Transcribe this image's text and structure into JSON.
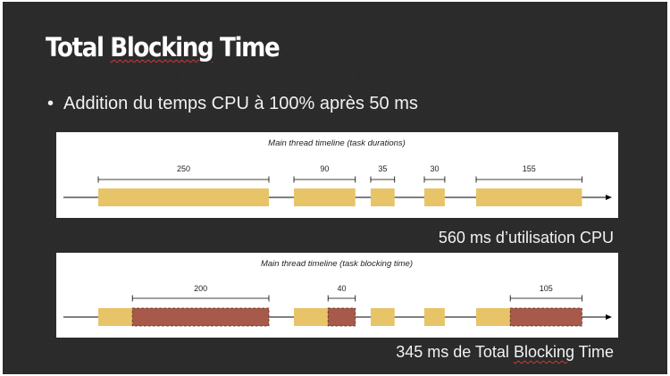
{
  "slide": {
    "title_parts": [
      "Total ",
      "Blocking",
      " Time"
    ],
    "bullet": "Addition du temps CPU à 100% après 50 ms",
    "caption_1": "560 ms d’utilisation CPU",
    "caption_2_parts": [
      "345 ms de Total ",
      "Blocking",
      " Time"
    ]
  },
  "diagram_1": {
    "title": "Main thread timeline (task durations)",
    "tasks": [
      {
        "duration": 250,
        "label": "250"
      },
      {
        "duration": 90,
        "label": "90"
      },
      {
        "duration": 35,
        "label": "35"
      },
      {
        "duration": 30,
        "label": "30"
      },
      {
        "duration": 155,
        "label": "155"
      }
    ]
  },
  "diagram_2": {
    "title": "Main thread timeline (task blocking time)",
    "tasks": [
      {
        "duration": 250,
        "blocking": 200,
        "label": "200"
      },
      {
        "duration": 90,
        "blocking": 40,
        "label": "40"
      },
      {
        "duration": 35,
        "blocking": 0,
        "label": ""
      },
      {
        "duration": 30,
        "blocking": 0,
        "label": ""
      },
      {
        "duration": 155,
        "blocking": 105,
        "label": "105"
      }
    ]
  },
  "colors": {
    "task": "#e8c468",
    "blocking": "#a85a4a",
    "axis": "#000000"
  }
}
